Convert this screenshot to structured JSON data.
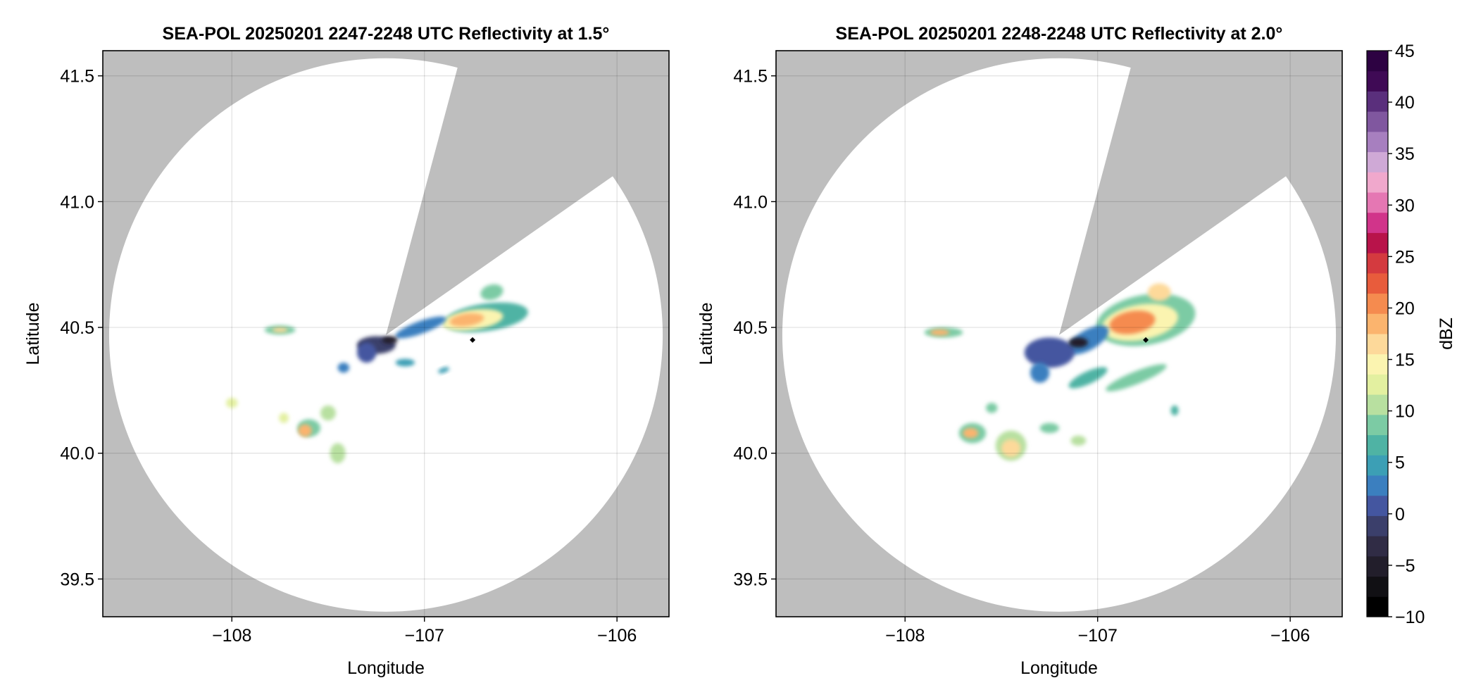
{
  "chart_data": [
    {
      "type": "radar_ppi",
      "title": "SEA-POL 20250201 2247-2248 UTC Reflectivity at 1.5°",
      "xlabel": "Longitude",
      "ylabel": "Latitude",
      "xlim": [
        -108.67,
        -105.73
      ],
      "ylim": [
        39.35,
        41.6
      ],
      "xticks": [
        -108,
        -107,
        -106
      ],
      "xtick_labels": [
        "−108",
        "−107",
        "−106"
      ],
      "yticks": [
        39.5,
        40.0,
        40.5,
        41.0,
        41.5
      ],
      "ytick_labels": [
        "39.5",
        "40.0",
        "40.5",
        "41.0",
        "41.5"
      ],
      "grid": true,
      "no_data_color": "#bebebe",
      "radar_site": {
        "lon": -107.2,
        "lat": 40.47
      },
      "coverage_radius_deg_lat": 1.1,
      "blocked_sectors_az_deg": [
        [
          15,
          55
        ]
      ],
      "marker": {
        "lon": -106.75,
        "lat": 40.45
      },
      "echo_cells": [
        {
          "lon": -106.68,
          "lat": 40.54,
          "rx": 0.22,
          "ry": 0.055,
          "rot": -8,
          "dbz": 12
        },
        {
          "lon": -106.75,
          "lat": 40.53,
          "rx": 0.16,
          "ry": 0.04,
          "rot": -8,
          "dbz": 21
        },
        {
          "lon": -106.78,
          "lat": 40.53,
          "rx": 0.09,
          "ry": 0.025,
          "rot": -8,
          "dbz": 27
        },
        {
          "lon": -106.65,
          "lat": 40.64,
          "rx": 0.06,
          "ry": 0.03,
          "rot": -15,
          "dbz": 13
        },
        {
          "lon": -107.02,
          "lat": 40.5,
          "rx": 0.14,
          "ry": 0.025,
          "rot": -20,
          "dbz": 5
        },
        {
          "lon": -107.25,
          "lat": 40.43,
          "rx": 0.1,
          "ry": 0.035,
          "rot": 0,
          "dbz": 1
        },
        {
          "lon": -107.3,
          "lat": 40.4,
          "rx": 0.05,
          "ry": 0.04,
          "rot": 0,
          "dbz": 4
        },
        {
          "lon": -107.18,
          "lat": 40.45,
          "rx": 0.04,
          "ry": 0.015,
          "rot": 0,
          "dbz": -5
        },
        {
          "lon": -107.42,
          "lat": 40.34,
          "rx": 0.03,
          "ry": 0.02,
          "rot": 0,
          "dbz": 6
        },
        {
          "lon": -107.1,
          "lat": 40.36,
          "rx": 0.05,
          "ry": 0.015,
          "rot": 0,
          "dbz": 9
        },
        {
          "lon": -106.9,
          "lat": 40.33,
          "rx": 0.03,
          "ry": 0.01,
          "rot": -20,
          "dbz": 8
        },
        {
          "lon": -107.75,
          "lat": 40.49,
          "rx": 0.08,
          "ry": 0.018,
          "rot": 0,
          "dbz": 14
        },
        {
          "lon": -107.75,
          "lat": 40.49,
          "rx": 0.04,
          "ry": 0.01,
          "rot": 0,
          "dbz": 24
        },
        {
          "lon": -107.6,
          "lat": 40.1,
          "rx": 0.06,
          "ry": 0.035,
          "rot": 0,
          "dbz": 13
        },
        {
          "lon": -107.62,
          "lat": 40.09,
          "rx": 0.035,
          "ry": 0.025,
          "rot": 0,
          "dbz": 27
        },
        {
          "lon": -107.5,
          "lat": 40.16,
          "rx": 0.04,
          "ry": 0.03,
          "rot": 0,
          "dbz": 15
        },
        {
          "lon": -107.45,
          "lat": 40.0,
          "rx": 0.04,
          "ry": 0.04,
          "rot": 0,
          "dbz": 17
        },
        {
          "lon": -107.73,
          "lat": 40.14,
          "rx": 0.025,
          "ry": 0.02,
          "rot": 0,
          "dbz": 18
        },
        {
          "lon": -108.0,
          "lat": 40.2,
          "rx": 0.03,
          "ry": 0.02,
          "rot": 0,
          "dbz": 18
        }
      ]
    },
    {
      "type": "radar_ppi",
      "title": "SEA-POL 20250201 2248-2248 UTC Reflectivity at 2.0°",
      "xlabel": "Longitude",
      "ylabel": "Latitude",
      "xlim": [
        -108.67,
        -105.73
      ],
      "ylim": [
        39.35,
        41.6
      ],
      "xticks": [
        -108,
        -107,
        -106
      ],
      "xtick_labels": [
        "−108",
        "−107",
        "−106"
      ],
      "yticks": [
        39.5,
        40.0,
        40.5,
        41.0,
        41.5
      ],
      "ytick_labels": [
        "39.5",
        "40.0",
        "40.5",
        "41.0",
        "41.5"
      ],
      "grid": true,
      "no_data_color": "#bebebe",
      "radar_site": {
        "lon": -107.2,
        "lat": 40.47
      },
      "coverage_radius_deg_lat": 1.1,
      "blocked_sectors_az_deg": [
        [
          15,
          55
        ]
      ],
      "marker": {
        "lon": -106.75,
        "lat": 40.45
      },
      "echo_cells": [
        {
          "lon": -106.75,
          "lat": 40.53,
          "rx": 0.26,
          "ry": 0.1,
          "rot": -10,
          "dbz": 13
        },
        {
          "lon": -106.78,
          "lat": 40.52,
          "rx": 0.2,
          "ry": 0.07,
          "rot": -10,
          "dbz": 21
        },
        {
          "lon": -106.82,
          "lat": 40.52,
          "rx": 0.12,
          "ry": 0.045,
          "rot": -10,
          "dbz": 28
        },
        {
          "lon": -106.68,
          "lat": 40.64,
          "rx": 0.06,
          "ry": 0.035,
          "rot": 0,
          "dbz": 24
        },
        {
          "lon": -107.05,
          "lat": 40.45,
          "rx": 0.12,
          "ry": 0.04,
          "rot": -30,
          "dbz": 7
        },
        {
          "lon": -107.25,
          "lat": 40.4,
          "rx": 0.13,
          "ry": 0.06,
          "rot": 0,
          "dbz": 3
        },
        {
          "lon": -107.3,
          "lat": 40.32,
          "rx": 0.05,
          "ry": 0.04,
          "rot": 0,
          "dbz": 6
        },
        {
          "lon": -107.1,
          "lat": 40.44,
          "rx": 0.05,
          "ry": 0.02,
          "rot": 0,
          "dbz": -5
        },
        {
          "lon": -107.05,
          "lat": 40.3,
          "rx": 0.11,
          "ry": 0.025,
          "rot": -25,
          "dbz": 12
        },
        {
          "lon": -106.8,
          "lat": 40.3,
          "rx": 0.17,
          "ry": 0.025,
          "rot": -22,
          "dbz": 14
        },
        {
          "lon": -107.8,
          "lat": 40.48,
          "rx": 0.1,
          "ry": 0.02,
          "rot": 0,
          "dbz": 14
        },
        {
          "lon": -107.82,
          "lat": 40.48,
          "rx": 0.05,
          "ry": 0.012,
          "rot": 0,
          "dbz": 25
        },
        {
          "lon": -107.65,
          "lat": 40.08,
          "rx": 0.07,
          "ry": 0.04,
          "rot": 0,
          "dbz": 14
        },
        {
          "lon": -107.66,
          "lat": 40.08,
          "rx": 0.04,
          "ry": 0.02,
          "rot": 0,
          "dbz": 25
        },
        {
          "lon": -107.45,
          "lat": 40.03,
          "rx": 0.08,
          "ry": 0.06,
          "rot": 0,
          "dbz": 15
        },
        {
          "lon": -107.45,
          "lat": 40.02,
          "rx": 0.05,
          "ry": 0.035,
          "rot": 0,
          "dbz": 24
        },
        {
          "lon": -107.25,
          "lat": 40.1,
          "rx": 0.05,
          "ry": 0.02,
          "rot": 0,
          "dbz": 14
        },
        {
          "lon": -107.1,
          "lat": 40.05,
          "rx": 0.04,
          "ry": 0.02,
          "rot": 0,
          "dbz": 16
        },
        {
          "lon": -107.55,
          "lat": 40.18,
          "rx": 0.03,
          "ry": 0.02,
          "rot": 0,
          "dbz": 13
        },
        {
          "lon": -106.6,
          "lat": 40.17,
          "rx": 0.02,
          "ry": 0.02,
          "rot": 0,
          "dbz": 12
        }
      ]
    }
  ],
  "colorbar": {
    "label": "dBZ",
    "min": -10,
    "max": 45,
    "step": 2.5,
    "ticks": [
      -10,
      -5,
      0,
      5,
      10,
      15,
      20,
      25,
      30,
      35,
      40,
      45
    ],
    "tick_labels": [
      "−10",
      "−5",
      "0",
      "5",
      "10",
      "15",
      "20",
      "25",
      "30",
      "35",
      "40",
      "45"
    ],
    "colors": [
      "#000000",
      "#111014",
      "#221e2b",
      "#302c45",
      "#3b3f6b",
      "#4456a0",
      "#3b7fbf",
      "#3c9fb5",
      "#4fb3a4",
      "#7ccba4",
      "#b8e0a0",
      "#e3f0a0",
      "#fbf4b0",
      "#fdd99a",
      "#fbb46e",
      "#f58b4f",
      "#e85c3c",
      "#d43a3f",
      "#b8134a",
      "#d1348a",
      "#e577b3",
      "#f0a8cc",
      "#cfa9d6",
      "#a77fbf",
      "#80579f",
      "#5a2f7c",
      "#3f0a55",
      "#2d0242"
    ]
  }
}
